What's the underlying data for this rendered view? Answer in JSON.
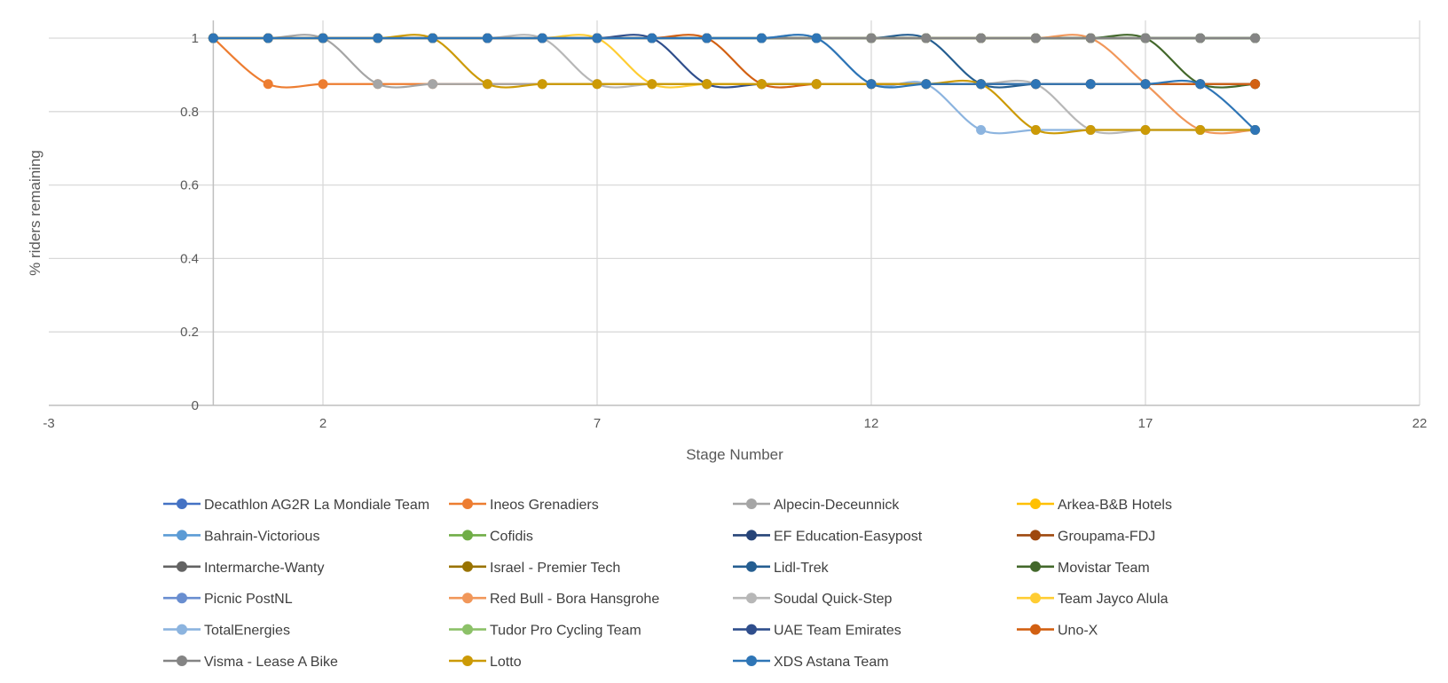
{
  "chart_data": {
    "type": "scatter",
    "title": "",
    "xlabel": "Stage Number",
    "ylabel": "% riders remaining",
    "xlim": [
      -3,
      22
    ],
    "ylim": [
      0,
      1
    ],
    "x_ticks": [
      "-3",
      "2",
      "7",
      "12",
      "17",
      "22"
    ],
    "y_ticks": [
      "0",
      "0.2",
      "0.4",
      "0.6",
      "0.8",
      "1"
    ],
    "grid": true,
    "legend_position": "bottom",
    "smooth_lines": true,
    "x": [
      0,
      1,
      2,
      3,
      4,
      5,
      6,
      7,
      8,
      9,
      10,
      11,
      12,
      13,
      14,
      15,
      16,
      17,
      18,
      19
    ],
    "series": [
      {
        "name": "Decathlon AG2R La Mondiale Team",
        "color": "#4472C4",
        "values": [
          1,
          1,
          1,
          1,
          1,
          1,
          1,
          1,
          1,
          1,
          1,
          1,
          1,
          1,
          1,
          1,
          1,
          1,
          1,
          1
        ]
      },
      {
        "name": "Ineos Grenadiers",
        "color": "#ED7D31",
        "values": [
          1,
          0.875,
          0.875,
          0.875,
          0.875,
          0.875,
          0.875,
          0.875,
          0.875,
          0.875,
          0.875,
          0.875,
          0.875,
          0.875,
          0.875,
          0.875,
          0.875,
          0.875,
          0.875,
          0.875
        ]
      },
      {
        "name": "Alpecin-Deceunnick",
        "color": "#A5A5A5",
        "values": [
          1,
          1,
          1,
          0.875,
          0.875,
          0.875,
          0.875,
          0.875,
          0.875,
          0.875,
          0.875,
          0.875,
          0.875,
          0.875,
          0.875,
          0.875,
          0.875,
          0.875,
          0.875,
          0.875
        ]
      },
      {
        "name": "Arkea-B&B Hotels",
        "color": "#FFC000",
        "values": [
          1,
          1,
          1,
          1,
          1,
          1,
          1,
          1,
          1,
          1,
          1,
          1,
          1,
          1,
          1,
          1,
          1,
          1,
          1,
          1
        ]
      },
      {
        "name": "Bahrain-Victorious",
        "color": "#5B9BD5",
        "values": [
          1,
          1,
          1,
          1,
          1,
          1,
          1,
          1,
          1,
          1,
          1,
          1,
          1,
          1,
          1,
          1,
          1,
          1,
          1,
          1
        ]
      },
      {
        "name": "Cofidis",
        "color": "#70AD47",
        "values": [
          1,
          1,
          1,
          1,
          1,
          1,
          1,
          1,
          1,
          1,
          1,
          1,
          1,
          1,
          1,
          1,
          1,
          1,
          1,
          1
        ]
      },
      {
        "name": "EF Education-Easypost",
        "color": "#264478",
        "values": [
          1,
          1,
          1,
          1,
          1,
          1,
          1,
          1,
          1,
          1,
          1,
          1,
          1,
          1,
          1,
          1,
          1,
          1,
          1,
          1
        ]
      },
      {
        "name": "Groupama-FDJ",
        "color": "#9E480E",
        "values": [
          1,
          1,
          1,
          1,
          1,
          1,
          1,
          1,
          1,
          1,
          1,
          1,
          1,
          1,
          1,
          1,
          1,
          1,
          1,
          1
        ]
      },
      {
        "name": "Intermarche-Wanty",
        "color": "#636363",
        "values": [
          1,
          1,
          1,
          1,
          1,
          1,
          1,
          1,
          1,
          1,
          1,
          1,
          1,
          1,
          1,
          1,
          1,
          1,
          1,
          1
        ]
      },
      {
        "name": "Israel - Premier Tech",
        "color": "#997300",
        "values": [
          1,
          1,
          1,
          1,
          1,
          1,
          1,
          1,
          1,
          1,
          1,
          1,
          1,
          1,
          1,
          1,
          1,
          1,
          1,
          1
        ]
      },
      {
        "name": "Lidl-Trek",
        "color": "#255E91",
        "values": [
          1,
          1,
          1,
          1,
          1,
          1,
          1,
          1,
          1,
          1,
          1,
          1,
          1,
          1,
          0.875,
          0.875,
          0.875,
          0.875,
          0.875,
          0.875
        ]
      },
      {
        "name": "Movistar Team",
        "color": "#43682B",
        "values": [
          1,
          1,
          1,
          1,
          1,
          1,
          1,
          1,
          1,
          1,
          1,
          1,
          1,
          1,
          1,
          1,
          1,
          1,
          0.875,
          0.875
        ]
      },
      {
        "name": "Picnic PostNL",
        "color": "#698ED0",
        "values": [
          1,
          1,
          1,
          1,
          1,
          1,
          1,
          1,
          1,
          1,
          1,
          1,
          1,
          1,
          1,
          1,
          1,
          1,
          1,
          1
        ]
      },
      {
        "name": "Red Bull - Bora Hansgrohe",
        "color": "#F1975A",
        "values": [
          1,
          1,
          1,
          1,
          1,
          1,
          1,
          1,
          1,
          1,
          1,
          1,
          1,
          1,
          1,
          1,
          1,
          0.875,
          0.75,
          0.75
        ]
      },
      {
        "name": "Soudal Quick-Step",
        "color": "#B7B7B7",
        "values": [
          1,
          1,
          1,
          1,
          1,
          1,
          1,
          0.875,
          0.875,
          0.875,
          0.875,
          0.875,
          0.875,
          0.875,
          0.875,
          0.875,
          0.75,
          0.75,
          0.75,
          0.75
        ]
      },
      {
        "name": "Team Jayco Alula",
        "color": "#FFCD33",
        "values": [
          1,
          1,
          1,
          1,
          1,
          1,
          1,
          1,
          0.875,
          0.875,
          0.875,
          0.875,
          0.875,
          0.875,
          0.875,
          0.875,
          0.875,
          0.875,
          0.875,
          0.875
        ]
      },
      {
        "name": "TotalEnergies",
        "color": "#8CB4DF",
        "values": [
          1,
          1,
          1,
          1,
          1,
          1,
          1,
          1,
          1,
          1,
          1,
          1,
          0.875,
          0.875,
          0.75,
          0.75,
          0.75,
          0.75,
          0.75,
          0.75
        ]
      },
      {
        "name": "Tudor Pro Cycling Team",
        "color": "#8CC168",
        "values": [
          1,
          1,
          1,
          1,
          1,
          1,
          1,
          1,
          1,
          1,
          1,
          1,
          1,
          1,
          1,
          1,
          1,
          1,
          1,
          1
        ]
      },
      {
        "name": "UAE Team Emirates",
        "color": "#2F4E8C",
        "values": [
          1,
          1,
          1,
          1,
          1,
          1,
          1,
          1,
          1,
          0.875,
          0.875,
          0.875,
          0.875,
          0.875,
          0.875,
          0.875,
          0.875,
          0.875,
          0.875,
          0.875
        ]
      },
      {
        "name": "Uno-X",
        "color": "#D26012",
        "values": [
          1,
          1,
          1,
          1,
          1,
          1,
          1,
          1,
          1,
          1,
          0.875,
          0.875,
          0.875,
          0.875,
          0.875,
          0.875,
          0.875,
          0.875,
          0.875,
          0.875
        ]
      },
      {
        "name": "Visma - Lease A Bike",
        "color": "#848484",
        "values": [
          1,
          1,
          1,
          1,
          1,
          1,
          1,
          1,
          1,
          1,
          1,
          1,
          1,
          1,
          1,
          1,
          1,
          1,
          1,
          1
        ]
      },
      {
        "name": "Lotto",
        "color": "#CC9A06",
        "values": [
          1,
          1,
          1,
          1,
          1,
          0.875,
          0.875,
          0.875,
          0.875,
          0.875,
          0.875,
          0.875,
          0.875,
          0.875,
          0.875,
          0.75,
          0.75,
          0.75,
          0.75,
          0.75
        ]
      },
      {
        "name": "XDS Astana Team",
        "color": "#2E75B6",
        "values": [
          1,
          1,
          1,
          1,
          1,
          1,
          1,
          1,
          1,
          1,
          1,
          1,
          0.875,
          0.875,
          0.875,
          0.875,
          0.875,
          0.875,
          0.875,
          0.75
        ]
      }
    ]
  }
}
